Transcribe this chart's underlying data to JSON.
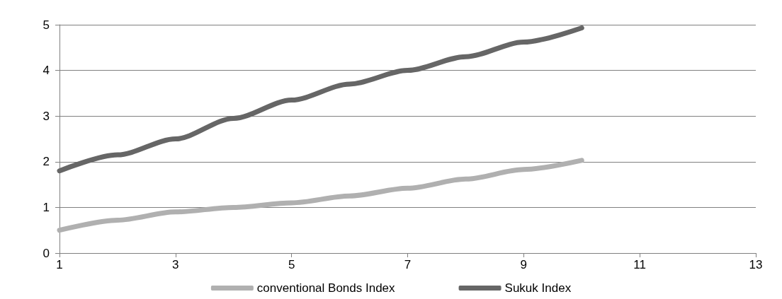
{
  "chart_data": {
    "type": "line",
    "x": [
      1,
      2,
      3,
      4,
      5,
      6,
      7,
      8,
      9,
      10
    ],
    "series": [
      {
        "name": "conventional Bonds Index",
        "color": "#b0b0b0",
        "values": [
          0.5,
          0.72,
          0.9,
          1.0,
          1.1,
          1.25,
          1.42,
          1.62,
          1.83,
          2.03
        ]
      },
      {
        "name": "Sukuk Index",
        "color": "#666666",
        "values": [
          1.8,
          2.15,
          2.5,
          2.95,
          3.35,
          3.7,
          4.0,
          4.3,
          4.62,
          4.93
        ]
      }
    ],
    "xlim": [
      1,
      13
    ],
    "xticks": [
      1,
      3,
      5,
      7,
      9,
      11,
      13
    ],
    "ylim": [
      0,
      5
    ],
    "yticks": [
      0,
      1,
      2,
      3,
      4,
      5
    ],
    "grid": "y",
    "legend": "bottom",
    "marker": "none",
    "line_style": "solid"
  }
}
